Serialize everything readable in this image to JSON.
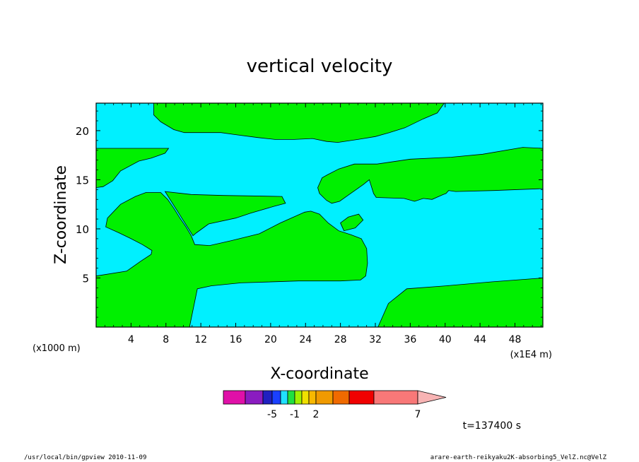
{
  "chart_data": {
    "type": "contour",
    "title": "vertical velocity",
    "xlabel": "X-coordinate",
    "ylabel": "Z-coordinate",
    "x_unit_left": "(x1000 m)",
    "x_unit_right": "(x1E4 m)",
    "xlim": [
      0,
      51.2
    ],
    "ylim": [
      0,
      22.8
    ],
    "x_ticks": [
      4,
      8,
      12,
      16,
      20,
      24,
      28,
      32,
      36,
      40,
      44,
      48
    ],
    "y_ticks": [
      5,
      10,
      15,
      20
    ],
    "background_level": "-1 to 0",
    "region_level": "0 to 1",
    "regions": [
      {
        "name": "upper-band",
        "points": [
          [
            6.6,
            22.8
          ],
          [
            39.9,
            22.8
          ],
          [
            39.1,
            21.8
          ],
          [
            37.5,
            21.2
          ],
          [
            35.4,
            20.3
          ],
          [
            33.6,
            19.8
          ],
          [
            32,
            19.4
          ],
          [
            30,
            19.1
          ],
          [
            27.7,
            18.8
          ],
          [
            26.4,
            18.9
          ],
          [
            24.8,
            19.2
          ],
          [
            22.7,
            19.1
          ],
          [
            20.5,
            19.1
          ],
          [
            18.5,
            19.3
          ],
          [
            15.9,
            19.6
          ],
          [
            14.3,
            19.8
          ],
          [
            12,
            19.8
          ],
          [
            10.1,
            19.8
          ],
          [
            8.9,
            20.1
          ],
          [
            7.4,
            20.9
          ],
          [
            6.6,
            21.6
          ]
        ]
      },
      {
        "name": "upper-left-band",
        "points": [
          [
            0,
            18.2
          ],
          [
            8.3,
            18.2
          ],
          [
            7.9,
            17.7
          ],
          [
            6.3,
            17.2
          ],
          [
            4.9,
            16.9
          ],
          [
            2.8,
            15.9
          ],
          [
            1.9,
            14.9
          ],
          [
            0.8,
            14.3
          ],
          [
            0,
            14.2
          ]
        ]
      },
      {
        "name": "right-band",
        "points": [
          [
            51.2,
            18.2
          ],
          [
            48.9,
            18.3
          ],
          [
            44.3,
            17.6
          ],
          [
            40.7,
            17.3
          ],
          [
            36,
            17.1
          ],
          [
            32.2,
            16.6
          ],
          [
            29.6,
            16.6
          ],
          [
            27.8,
            16.1
          ],
          [
            26.5,
            15.5
          ],
          [
            25.9,
            15.2
          ],
          [
            25.4,
            14.2
          ],
          [
            25.6,
            13.6
          ],
          [
            26.4,
            12.9
          ],
          [
            27,
            12.6
          ],
          [
            27.9,
            12.8
          ],
          [
            29,
            13.5
          ],
          [
            30.6,
            14.5
          ],
          [
            31.3,
            15
          ],
          [
            31.8,
            13.6
          ],
          [
            32.1,
            13.2
          ],
          [
            35.3,
            13.1
          ],
          [
            36.5,
            12.8
          ],
          [
            37.5,
            13.1
          ],
          [
            38.5,
            13
          ],
          [
            39.8,
            13.5
          ],
          [
            40.1,
            13.6
          ],
          [
            40.4,
            13.9
          ],
          [
            41.2,
            13.8
          ],
          [
            45.6,
            13.9
          ],
          [
            51.2,
            14.1
          ]
        ]
      },
      {
        "name": "middle-left-lobe",
        "points": [
          [
            0,
            5.2
          ],
          [
            3.5,
            5.7
          ],
          [
            4.3,
            6.2
          ],
          [
            5.1,
            6.7
          ],
          [
            6.3,
            7.4
          ],
          [
            6.4,
            7.8
          ],
          [
            5.3,
            8.4
          ],
          [
            4,
            9
          ],
          [
            2.6,
            9.6
          ],
          [
            1.1,
            10.2
          ],
          [
            1.3,
            11.1
          ],
          [
            2.8,
            12.5
          ],
          [
            4.5,
            13.3
          ],
          [
            5.7,
            13.7
          ],
          [
            7.4,
            13.7
          ],
          [
            8.2,
            13
          ],
          [
            8.9,
            12.1
          ],
          [
            9.6,
            11.1
          ],
          [
            10.3,
            10.2
          ],
          [
            10.9,
            9.3
          ],
          [
            11.3,
            8.4
          ],
          [
            13,
            8.3
          ],
          [
            15.5,
            8.8
          ],
          [
            18.7,
            9.5
          ],
          [
            21.1,
            10.6
          ],
          [
            23.9,
            11.7
          ],
          [
            24.6,
            11.8
          ],
          [
            25.6,
            11.5
          ],
          [
            26.6,
            10.6
          ],
          [
            27.8,
            9.8
          ],
          [
            29.2,
            9.4
          ],
          [
            30.4,
            9
          ],
          [
            31,
            8
          ],
          [
            31.1,
            6.5
          ],
          [
            30.9,
            5.2
          ],
          [
            30.3,
            4.8
          ],
          [
            28,
            4.7
          ],
          [
            23.2,
            4.7
          ],
          [
            16.6,
            4.5
          ],
          [
            13.2,
            4.2
          ],
          [
            11.6,
            3.9
          ],
          [
            10.7,
            0
          ],
          [
            0,
            0
          ]
        ]
      },
      {
        "name": "center-triangle",
        "points": [
          [
            7.9,
            13.8
          ],
          [
            10.9,
            13.5
          ],
          [
            14.6,
            13.4
          ],
          [
            21.3,
            13.3
          ],
          [
            21.7,
            12.6
          ],
          [
            20.4,
            12.3
          ],
          [
            17.7,
            11.6
          ],
          [
            16,
            11.1
          ],
          [
            12.9,
            10.5
          ],
          [
            11.5,
            9.6
          ],
          [
            11.1,
            9.3
          ]
        ]
      },
      {
        "name": "small-blob",
        "points": [
          [
            28.4,
            9.8
          ],
          [
            28,
            10.6
          ],
          [
            28.9,
            11.2
          ],
          [
            30.1,
            11.5
          ],
          [
            30.6,
            10.9
          ],
          [
            29.7,
            10.1
          ]
        ]
      },
      {
        "name": "lower-right-band",
        "points": [
          [
            32.3,
            0
          ],
          [
            33.5,
            2.4
          ],
          [
            35.6,
            3.9
          ],
          [
            40.1,
            4.2
          ],
          [
            45.3,
            4.6
          ],
          [
            51.2,
            5
          ],
          [
            51.2,
            0
          ]
        ]
      }
    ],
    "legend": {
      "colors": [
        "#e010a8",
        "#8a1cc0",
        "#2020c0",
        "#1a40ff",
        "#20e0ff",
        "#20e040",
        "#a0f000",
        "#f0e000",
        "#f8b800",
        "#f09a00",
        "#f06a00",
        "#f00000",
        "#f87878",
        "#f8b4b4"
      ],
      "labels": [
        {
          "text": "-5",
          "index": 2
        },
        {
          "text": "-1",
          "index": 5
        },
        {
          "text": "2",
          "index": 8
        },
        {
          "text": "7",
          "index": 12
        }
      ]
    }
  },
  "time_label": "t=137400 s",
  "footer": {
    "left": "/usr/local/bin/gpview  2010-11-09",
    "right": "arare-earth-reikyaku2K-absorbing5_VelZ.nc@VelZ"
  },
  "colors": {
    "background_fill": "#00f0ff",
    "region_fill": "#00f000"
  }
}
